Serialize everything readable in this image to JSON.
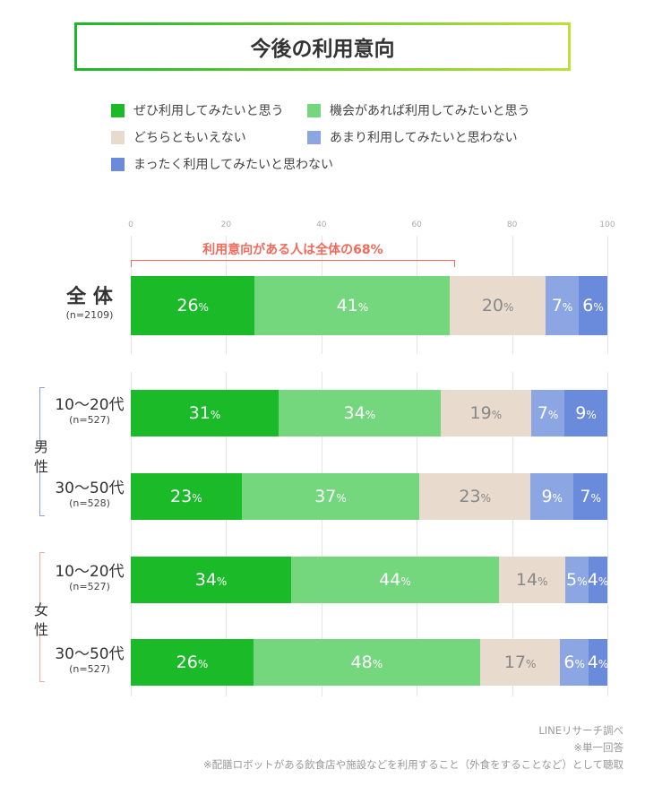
{
  "title": "今後の利用意向",
  "chart_data": {
    "type": "bar",
    "orientation": "horizontal-stacked",
    "xlim": [
      0,
      100
    ],
    "ticks": [
      "0",
      "20",
      "40",
      "60",
      "80",
      "100"
    ],
    "grid": true,
    "legend_position": "top",
    "unit": "%",
    "series": [
      {
        "name": "ぜひ利用してみたいと思う",
        "color": "#1aba28",
        "label_color": "#ffffff"
      },
      {
        "name": "機会があれば利用してみたいと思う",
        "color": "#74d77e",
        "label_color": "#ffffff"
      },
      {
        "name": "どちらともいえない",
        "color": "#e8dacd",
        "label_color": "#888888"
      },
      {
        "name": "あまり利用してみたいと思わない",
        "color": "#8ba6e3",
        "label_color": "#ffffff"
      },
      {
        "name": "まったく利用してみたいと思わない",
        "color": "#6a8bdc",
        "label_color": "#ffffff"
      }
    ],
    "rows": [
      {
        "label": "全 体",
        "n": "(n=2109)",
        "values": [
          26,
          41,
          20,
          7,
          6
        ]
      },
      {
        "group": "男性",
        "label": "10〜20代",
        "n": "(n=527)",
        "values": [
          31,
          34,
          19,
          7,
          9
        ]
      },
      {
        "group": "男性",
        "label": "30〜50代",
        "n": "(n=528)",
        "values": [
          23,
          37,
          23,
          9,
          7
        ]
      },
      {
        "group": "女性",
        "label": "10〜20代",
        "n": "(n=527)",
        "values": [
          34,
          44,
          14,
          5,
          4
        ]
      },
      {
        "group": "女性",
        "label": "30〜50代",
        "n": "(n=527)",
        "values": [
          26,
          48,
          17,
          6,
          4
        ]
      }
    ],
    "annotation": {
      "text": "利用意向がある人は全体の68%",
      "value": 68,
      "color": "#f26a5a"
    }
  },
  "groups": {
    "male": "男\n性",
    "female": "女\n性"
  },
  "notes": [
    "LINEリサーチ調べ",
    "※単一回答",
    "※配膳ロボットがある飲食店や施設などを利用すること（外食をすることなど）として聴取"
  ]
}
